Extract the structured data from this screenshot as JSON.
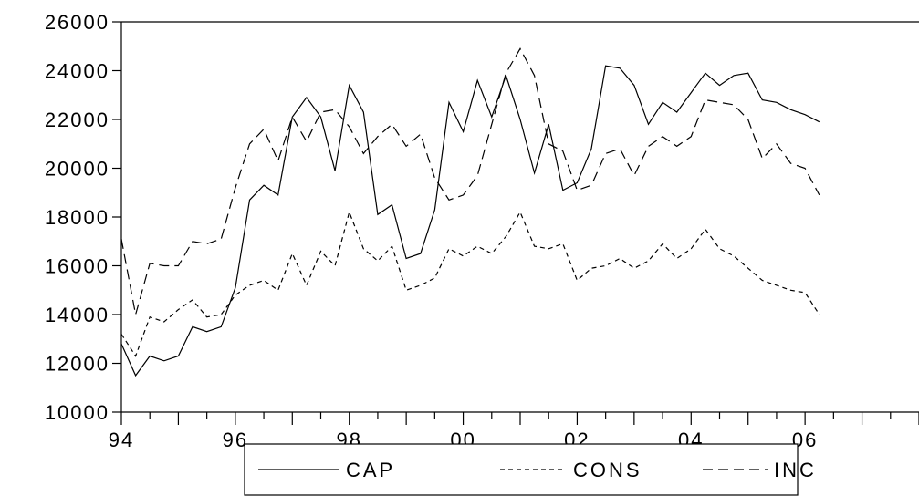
{
  "chart_data": {
    "type": "line",
    "title": "",
    "xlabel": "",
    "ylabel": "",
    "x_tick_labels": [
      "94",
      "96",
      "98",
      "00",
      "02",
      "04",
      "06"
    ],
    "x_tick_years": [
      1994,
      1996,
      1998,
      2000,
      2002,
      2004,
      2006
    ],
    "xlim": [
      1994,
      2008
    ],
    "ylim": [
      10000,
      26000
    ],
    "y_ticks": [
      10000,
      12000,
      14000,
      16000,
      18000,
      20000,
      22000,
      24000,
      26000
    ],
    "y_tick_labels": [
      "10000",
      "12000",
      "14000",
      "16000",
      "18000",
      "20000",
      "22000",
      "24000",
      "26000"
    ],
    "grid": false,
    "legend_position": "bottom",
    "x": [
      1994.0,
      1994.25,
      1994.5,
      1994.75,
      1995.0,
      1995.25,
      1995.5,
      1995.75,
      1996.0,
      1996.25,
      1996.5,
      1996.75,
      1997.0,
      1997.25,
      1997.5,
      1997.75,
      1998.0,
      1998.25,
      1998.5,
      1998.75,
      1999.0,
      1999.25,
      1999.5,
      1999.75,
      2000.0,
      2000.25,
      2000.5,
      2000.75,
      2001.0,
      2001.25,
      2001.5,
      2001.75,
      2002.0,
      2002.25,
      2002.5,
      2002.75,
      2003.0,
      2003.25,
      2003.5,
      2003.75,
      2004.0,
      2004.25,
      2004.5,
      2004.75,
      2005.0,
      2005.25,
      2005.5,
      2005.75,
      2006.0,
      2006.25
    ],
    "series": [
      {
        "name": "CAP",
        "style": "solid",
        "values": [
          12800,
          11500,
          12300,
          12100,
          12300,
          13500,
          13300,
          13500,
          15100,
          18700,
          19300,
          18900,
          22100,
          22900,
          22100,
          19900,
          23400,
          22300,
          18100,
          18500,
          16300,
          16500,
          18300,
          22700,
          21500,
          23600,
          22100,
          23800,
          22000,
          19800,
          21800,
          19100,
          19400,
          20800,
          24200,
          24100,
          23400,
          21800,
          22700,
          22300,
          23100,
          23900,
          23400,
          23800,
          23900,
          22800,
          22700,
          22400,
          22200,
          21900
        ]
      },
      {
        "name": "CONS",
        "style": "short-dash",
        "values": [
          13200,
          12300,
          13900,
          13700,
          14200,
          14600,
          13900,
          14000,
          14800,
          15200,
          15400,
          15000,
          16500,
          15200,
          16600,
          16000,
          18200,
          16700,
          16200,
          16800,
          15000,
          15200,
          15500,
          16700,
          16400,
          16800,
          16500,
          17200,
          18200,
          16800,
          16700,
          16900,
          15400,
          15900,
          16000,
          16300,
          15900,
          16200,
          16900,
          16300,
          16700,
          17500,
          16700,
          16400,
          15900,
          15400,
          15200,
          15000,
          14900,
          14000
        ]
      },
      {
        "name": "INC",
        "style": "long-dash",
        "values": [
          17100,
          14000,
          16100,
          16000,
          16000,
          17000,
          16900,
          17100,
          19200,
          21000,
          21600,
          20300,
          22100,
          21100,
          22300,
          22400,
          21700,
          20600,
          21300,
          21800,
          20900,
          21400,
          19600,
          18700,
          18900,
          19700,
          21800,
          23900,
          24900,
          23800,
          21000,
          20700,
          19100,
          19300,
          20600,
          20800,
          19700,
          20900,
          21300,
          20900,
          21300,
          22800,
          22700,
          22600,
          22000,
          20400,
          21000,
          20200,
          20000,
          18900
        ]
      }
    ]
  }
}
